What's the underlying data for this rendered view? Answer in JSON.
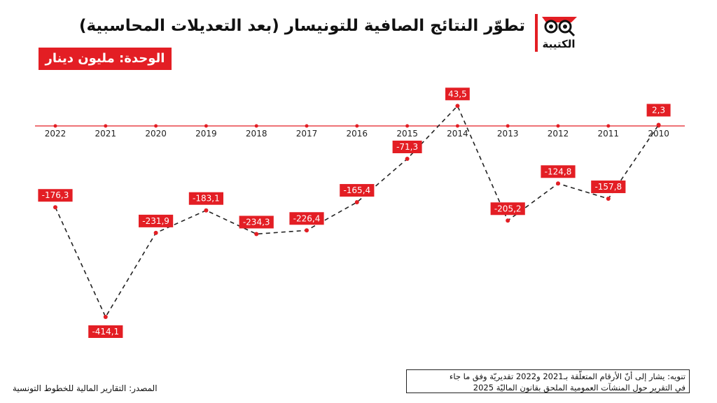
{
  "header": {
    "title": "تطوّر النتائج الصافية للتونيسار (بعد التعديلات المحاسبية)",
    "unit_label": "الوحدة: مليون دينار",
    "brand_name": "الكتيبة"
  },
  "footer": {
    "note_line1": "تنويه: يشار إلى أنّ الأرقام المتعلّقة بـ2021 و2022 تقديريّة وفق ما جاء",
    "note_line2": "في التقرير حول المنشآت العمومية الملحق بقانون الماليّة 2025",
    "source": "المصدر: التقارير المالية للخطوط التونسية"
  },
  "colors": {
    "accent": "#e31e24",
    "line": "#222222",
    "text": "#111111"
  },
  "chart_data": {
    "type": "line",
    "categories": [
      "2022",
      "2021",
      "2020",
      "2019",
      "2018",
      "2017",
      "2016",
      "2015",
      "2014",
      "2013",
      "2012",
      "2011",
      "2010"
    ],
    "series": [
      {
        "values": [
          -176.3,
          -414.1,
          -231.9,
          -183.1,
          -234.3,
          -226.4,
          -165.4,
          -71.3,
          43.5,
          -205.2,
          -124.8,
          -157.8,
          2.3
        ]
      }
    ],
    "data_labels": [
      "-176,3",
      "-414,1",
      "-231,9",
      "-183,1",
      "-234,3",
      "-226,4",
      "-165,4",
      "-71,3",
      "43,5",
      "-205,2",
      "-124,8",
      "-157,8",
      "2,3"
    ],
    "line_style": "dashed",
    "axis": "horizontal at zero",
    "ylim": [
      -430,
      60
    ],
    "grid": false,
    "legend": "none"
  }
}
